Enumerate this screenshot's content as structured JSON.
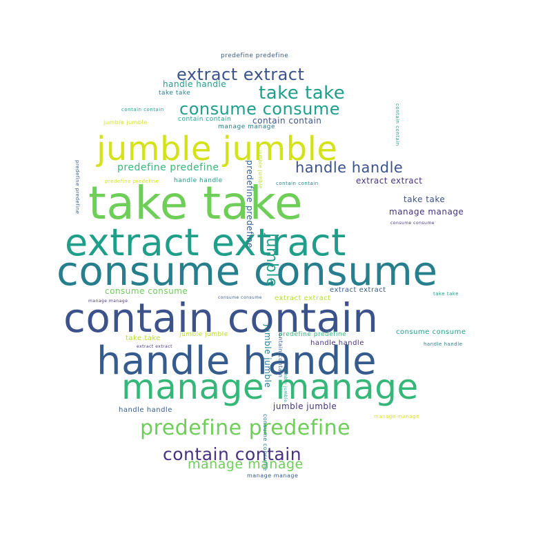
{
  "word_cloud": {
    "palette": {
      "purple": "#46327e",
      "indigo": "#3b528b",
      "blue": "#365c8d",
      "teal": "#277f8e",
      "cyan": "#1f9e89",
      "green": "#35b779",
      "lime": "#6ece58",
      "yellowgreen": "#b5de2b",
      "yellow": "#d4e21a"
    },
    "words": [
      {
        "text": "take take",
        "color": "lime"
      },
      {
        "text": "consume consume",
        "color": "teal"
      },
      {
        "text": "contain contain",
        "color": "indigo"
      },
      {
        "text": "extract extract",
        "color": "cyan"
      },
      {
        "text": "handle handle",
        "color": "blue"
      },
      {
        "text": "manage manage",
        "color": "green"
      },
      {
        "text": "jumble jumble",
        "color": "yellow"
      },
      {
        "text": "predefine predefine",
        "color": "lime"
      },
      {
        "text": "contain contain",
        "color": "purple"
      },
      {
        "text": "consume consume",
        "color": "cyan"
      },
      {
        "text": "extract extract",
        "color": "indigo"
      },
      {
        "text": "take take",
        "color": "cyan"
      },
      {
        "text": "handle handle",
        "color": "indigo"
      },
      {
        "text": "manage manage",
        "color": "lime"
      },
      {
        "text": "jumble",
        "color": "cyan"
      },
      {
        "text": "predefine predefine",
        "color": "green"
      },
      {
        "text": "extract extract",
        "color": "purple"
      },
      {
        "text": "take take",
        "color": "indigo"
      },
      {
        "text": "manage manage",
        "color": "purple"
      },
      {
        "text": "handle handle",
        "color": "cyan"
      },
      {
        "text": "contain contain",
        "color": "indigo"
      },
      {
        "text": "contain contain",
        "color": "cyan"
      },
      {
        "text": "manage manage",
        "color": "teal"
      },
      {
        "text": "consume consume",
        "color": "lime"
      },
      {
        "text": "extract extract",
        "color": "blue"
      },
      {
        "text": "extract extract",
        "color": "yellowgreen"
      },
      {
        "text": "handle handle",
        "color": "purple"
      },
      {
        "text": "take take",
        "color": "yellowgreen"
      },
      {
        "text": "jumble jumble",
        "color": "yellowgreen"
      },
      {
        "text": "predefine predefine",
        "color": "green"
      },
      {
        "text": "jumble jumble",
        "color": "purple"
      },
      {
        "text": "consume consume",
        "color": "cyan"
      },
      {
        "text": "handle handle",
        "color": "blue"
      },
      {
        "text": "jumble jumble",
        "color": "teal"
      },
      {
        "text": "predefine predefine",
        "color": "blue"
      },
      {
        "text": "take take",
        "color": "teal"
      },
      {
        "text": "handle handle",
        "color": "cyan"
      },
      {
        "text": "predefine predefine",
        "color": "blue"
      },
      {
        "text": "manage manage",
        "color": "blue"
      },
      {
        "text": "jumble jumble",
        "color": "yellow"
      },
      {
        "text": "contain contain",
        "color": "blue"
      },
      {
        "text": "consume consume",
        "color": "blue"
      },
      {
        "text": "manage manage",
        "color": "purple"
      },
      {
        "text": "extract extract",
        "color": "purple"
      },
      {
        "text": "take take",
        "color": "cyan"
      },
      {
        "text": "predefine predefine",
        "color": "yellow"
      },
      {
        "text": "contain contain",
        "color": "cyan"
      },
      {
        "text": "consume consume",
        "color": "purple"
      },
      {
        "text": "manage manage",
        "color": "yellow"
      },
      {
        "text": "handle handle",
        "color": "teal"
      },
      {
        "text": "contain contain",
        "color": "teal"
      },
      {
        "text": "predefine predefine",
        "color": "blue"
      },
      {
        "text": "jumble jumble",
        "color": "yellowgreen"
      },
      {
        "text": "contain contain",
        "color": "cyan"
      },
      {
        "text": "consume consume",
        "color": "teal"
      },
      {
        "text": "jumble jumble",
        "color": "cyan"
      }
    ]
  }
}
